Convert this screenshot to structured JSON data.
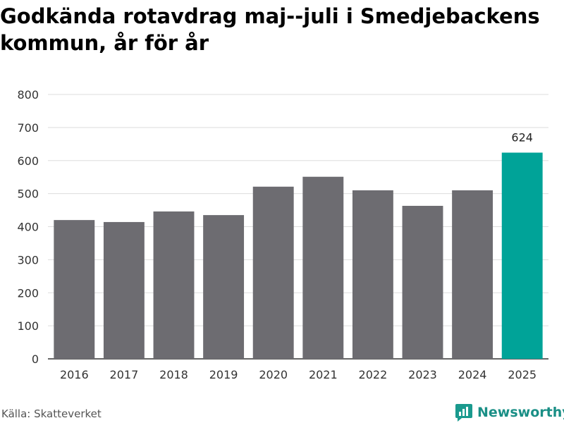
{
  "title": "Godkända rotavdrag maj--juli i Smedjebackens kommun, år för år",
  "source": "Källa: Skatteverket",
  "brand": {
    "name": "Newsworthy",
    "icon": "newsworthy-logo-icon",
    "color": "#1a9a8e"
  },
  "chart_data": {
    "type": "bar",
    "title": "Godkända rotavdrag maj--juli i Smedjebackens kommun, år för år",
    "xlabel": "",
    "ylabel": "",
    "categories": [
      "2016",
      "2017",
      "2018",
      "2019",
      "2020",
      "2021",
      "2022",
      "2023",
      "2024",
      "2025"
    ],
    "values": [
      420,
      414,
      446,
      435,
      521,
      551,
      510,
      463,
      510,
      624
    ],
    "ylim": [
      0,
      800
    ],
    "yticks": [
      "0",
      "100",
      "200",
      "300",
      "400",
      "500",
      "600",
      "700",
      "800"
    ],
    "grid": true,
    "bar_color": "#6d6c71",
    "highlight_color": "#00a398",
    "highlight_index": 9,
    "data_labels": [
      {
        "index": 9,
        "text": "624"
      }
    ]
  }
}
